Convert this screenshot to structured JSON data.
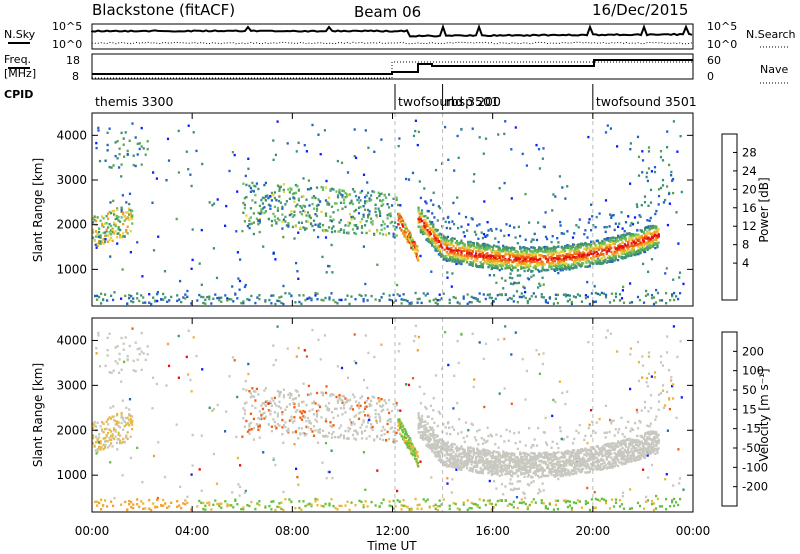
{
  "header": {
    "station": "Blackstone (fitACF)",
    "beam": "Beam 06",
    "date": "16/Dec/2015"
  },
  "top_panels": {
    "nsky_label": "N.Sky",
    "nsearch_label": "N.Search",
    "nsky_ticks": [
      "10^5",
      "10^0"
    ],
    "nsearch_ticks": [
      "10^5",
      "10^0"
    ],
    "freq_label": "Freq.",
    "freq_unit": "[MHz]",
    "freq_ticks": [
      "18",
      "8"
    ],
    "nave_label": "Nave",
    "nave_ticks": [
      "60",
      "0"
    ],
    "cpid_label": "CPID",
    "cpid_segments": [
      {
        "start_hour": 0,
        "name": "themis 3300"
      },
      {
        "start_hour": 12.1,
        "name": "twofsound 3501"
      },
      {
        "start_hour": 14.0,
        "name": "rbsp 200"
      },
      {
        "start_hour": 20.0,
        "name": "twofsound 3501"
      }
    ]
  },
  "colors": {
    "power_scale": [
      "#0a1eff",
      "#2060c8",
      "#3c8f78",
      "#5aa050",
      "#66c060",
      "#e8d040",
      "#f2a020",
      "#f06010",
      "#e81010"
    ],
    "velocity_scale": [
      "#e81010",
      "#f06010",
      "#f2a030",
      "#e8b840",
      "#c8c8c0",
      "#66c040",
      "#3c8f78",
      "#2060c8",
      "#0a1eff"
    ],
    "ground_scatter": "#c8c8c0"
  },
  "chart_data": [
    {
      "type": "heatmap",
      "name": "power",
      "xlabel": "",
      "ylabel": "Slant Range [km]",
      "xlim": [
        0,
        24
      ],
      "ylim": [
        180,
        4500
      ],
      "yticks": [
        "4000",
        "3000",
        "2000",
        "1000"
      ],
      "colorbar_label": "Power [dB]",
      "colorbar_ticks": [
        "28",
        "24",
        "20",
        "16",
        "12",
        "8",
        "4"
      ],
      "mode_change_lines_hours": [
        12.1,
        14.0,
        20.0
      ]
    },
    {
      "type": "heatmap",
      "name": "velocity",
      "xlabel": "Time UT",
      "ylabel": "Slant Range [km]",
      "xlim": [
        0,
        24
      ],
      "ylim": [
        180,
        4500
      ],
      "xticks": [
        "00:00",
        "04:00",
        "08:00",
        "12:00",
        "16:00",
        "20:00",
        "00:00"
      ],
      "yticks": [
        "4000",
        "3000",
        "2000",
        "1000"
      ],
      "colorbar_label": "Velocity [m s⁻¹]",
      "colorbar_ticks": [
        "200",
        "100",
        "50",
        "15",
        "-15",
        "-50",
        "-100",
        "-200"
      ],
      "mode_change_lines_hours": [
        12.1,
        14.0,
        20.0
      ]
    }
  ]
}
